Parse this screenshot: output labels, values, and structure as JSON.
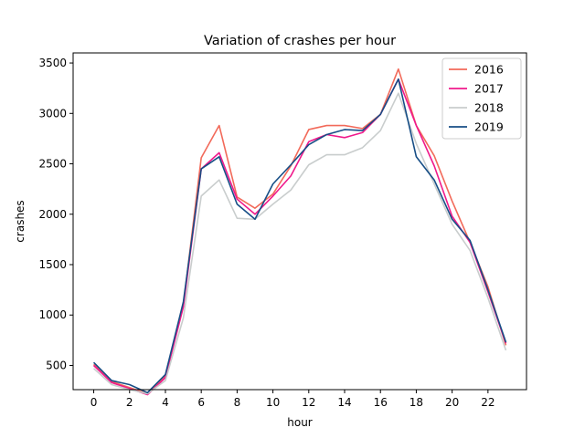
{
  "chart_data": {
    "type": "line",
    "title": "Variation of crashes per hour",
    "xlabel": "hour",
    "ylabel": "crashes",
    "xlim": [
      -1.15,
      24.15
    ],
    "ylim": [
      260,
      3600
    ],
    "xticks": [
      0,
      2,
      4,
      6,
      8,
      10,
      12,
      14,
      16,
      18,
      20,
      22
    ],
    "yticks": [
      500,
      1000,
      1500,
      2000,
      2500,
      3000,
      3500
    ],
    "grid": false,
    "legend_position": "top-right",
    "x": [
      0,
      1,
      2,
      3,
      4,
      5,
      6,
      7,
      8,
      9,
      10,
      11,
      12,
      13,
      14,
      15,
      16,
      17,
      18,
      19,
      20,
      21,
      22,
      23
    ],
    "series": [
      {
        "name": "2016",
        "color": "#f26a5a",
        "values": [
          510,
          340,
          280,
          220,
          400,
          1100,
          2560,
          2880,
          2170,
          2060,
          2200,
          2480,
          2840,
          2880,
          2880,
          2850,
          2990,
          3440,
          2880,
          2580,
          2130,
          1720,
          1280,
          700
        ]
      },
      {
        "name": "2017",
        "color": "#f0198b",
        "values": [
          500,
          330,
          270,
          210,
          380,
          1080,
          2450,
          2610,
          2150,
          2000,
          2180,
          2380,
          2720,
          2790,
          2760,
          2810,
          2990,
          3340,
          2880,
          2480,
          1980,
          1720,
          1230,
          720
        ]
      },
      {
        "name": "2018",
        "color": "#c9cdcd",
        "values": [
          470,
          310,
          260,
          220,
          350,
          970,
          2180,
          2340,
          1960,
          1950,
          2100,
          2240,
          2490,
          2590,
          2590,
          2660,
          2830,
          3200,
          2700,
          2300,
          1900,
          1640,
          1170,
          650
        ]
      },
      {
        "name": "2019",
        "color": "#174e86",
        "values": [
          530,
          350,
          310,
          230,
          410,
          1130,
          2450,
          2570,
          2100,
          1950,
          2300,
          2490,
          2690,
          2790,
          2840,
          2830,
          2990,
          3340,
          2570,
          2340,
          1950,
          1740,
          1250,
          730
        ]
      }
    ]
  }
}
